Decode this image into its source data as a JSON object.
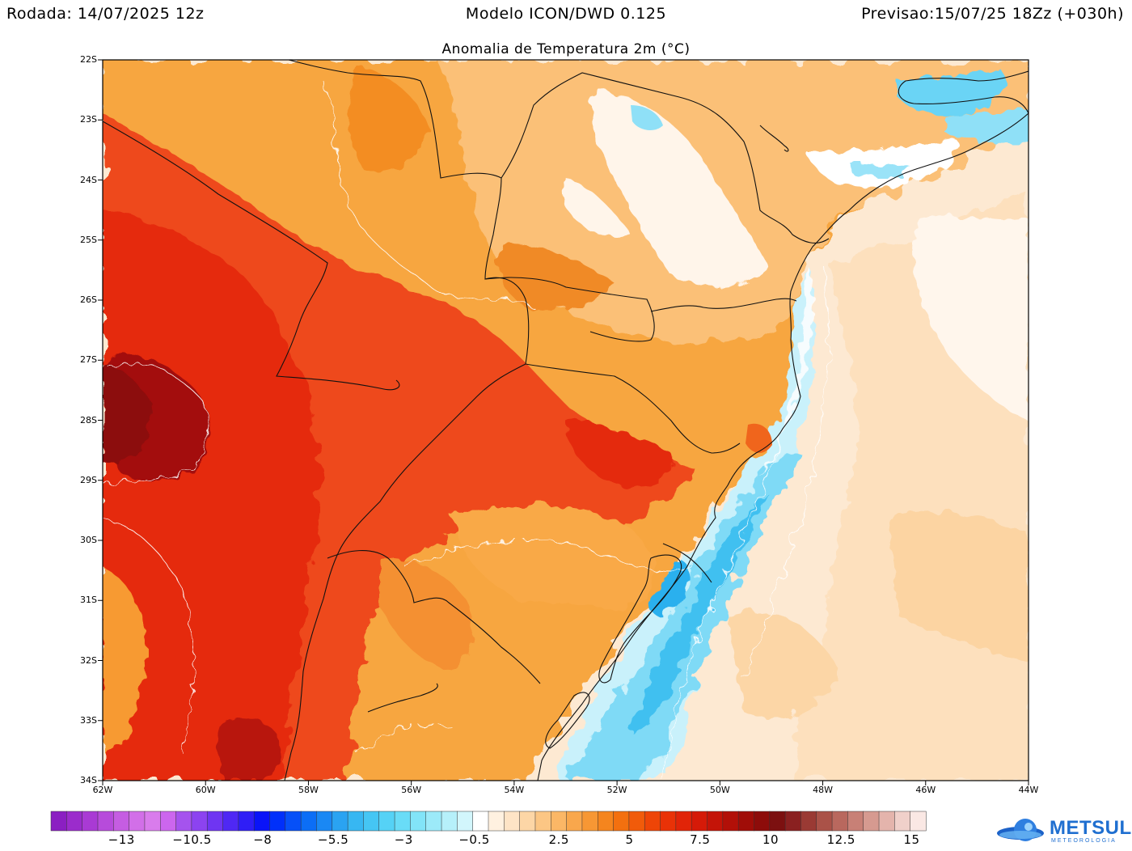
{
  "header": {
    "run": "Rodada: 14/07/2025 12z",
    "model": "Modelo ICON/DWD 0.125",
    "forecast": "Previsao:15/07/25 18Zz (+030h)"
  },
  "map": {
    "title": "Anomalia de Temperatura 2m (°C)",
    "lat_labels": [
      "22S",
      "23S",
      "24S",
      "25S",
      "26S",
      "27S",
      "28S",
      "29S",
      "30S",
      "31S",
      "32S",
      "33S",
      "34S"
    ],
    "lon_labels": [
      "62W",
      "60W",
      "58W",
      "56W",
      "54W",
      "52W",
      "50W",
      "48W",
      "46W",
      "44W"
    ],
    "colors": {
      "ocean_warm": "#fde6c8",
      "land_orange": "#f6a22c",
      "hot_red": "#ec3a12",
      "very_hot": "#a40e0a",
      "cold_blue": "#59d0f4"
    }
  },
  "colorbar": {
    "labels": [
      "-13",
      "-10.5",
      "-8",
      "-5.5",
      "-3",
      "-0.5",
      "2.5",
      "5",
      "7.5",
      "10",
      "12.5",
      "15"
    ],
    "colors": [
      "#8b1fc2",
      "#9b2ccc",
      "#a93ad4",
      "#b74bdb",
      "#c55de2",
      "#d26fe8",
      "#d97cec",
      "#cc66ee",
      "#a553ee",
      "#8c43f0",
      "#6f35f2",
      "#4f28f4",
      "#2f1ef6",
      "#0a14f8",
      "#0030fa",
      "#0650f8",
      "#0c6ef6",
      "#1a88f4",
      "#2aa3f2",
      "#37b7f2",
      "#45c6f4",
      "#55d2f6",
      "#69dcf7",
      "#82e4f8",
      "#9ceaf9",
      "#b6f0fa",
      "#d2f6fc",
      "#ffffff",
      "#fff1e0",
      "#fee4c6",
      "#fdd6a6",
      "#fcc684",
      "#fbb766",
      "#f9a74c",
      "#f79734",
      "#f5851e",
      "#f3700f",
      "#f15b0a",
      "#ee4507",
      "#e93207",
      "#e12408",
      "#d51a08",
      "#c41408",
      "#b21008",
      "#a00d08",
      "#8d0c0a",
      "#7c1010",
      "#8a2020",
      "#9a3a34",
      "#aa5248",
      "#b9685e",
      "#c88076",
      "#d69a90",
      "#e4b4ac",
      "#f0d0ca",
      "#fae8e4"
    ]
  }
}
